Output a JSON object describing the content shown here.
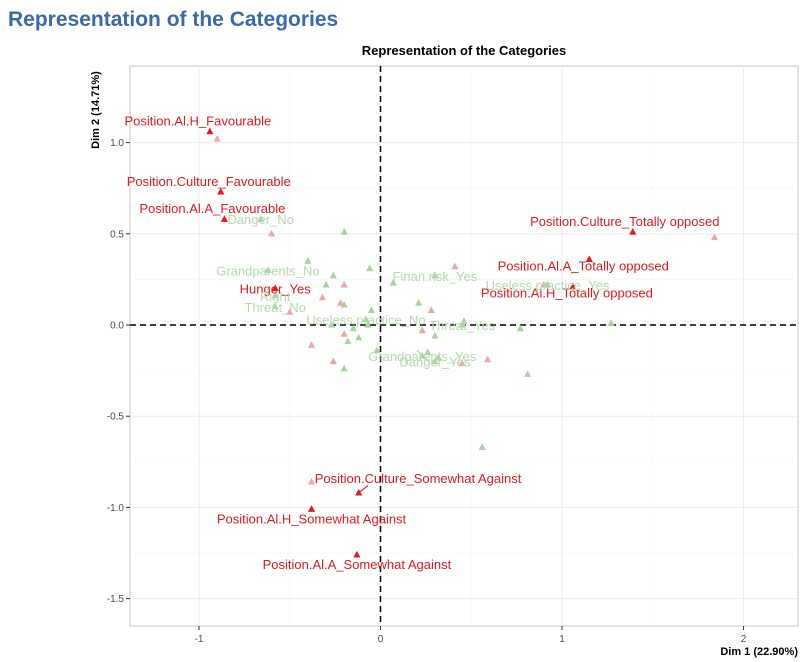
{
  "page": {
    "heading": "Representation of the Categories"
  },
  "chart_data": {
    "type": "scatter",
    "title": "Representation of the Categories",
    "xlabel": "Dim 1 (22.90%)",
    "ylabel": "Dim 2 (14.71%)",
    "xlim": [
      -1.38,
      2.3
    ],
    "ylim": [
      -1.65,
      1.42
    ],
    "x_ticks": [
      -1,
      0,
      1,
      2
    ],
    "y_ticks": [
      -1.5,
      -1.0,
      -0.5,
      0.0,
      0.5,
      1.0
    ],
    "grid": true,
    "reference_lines": {
      "x": 0,
      "y": 0,
      "style": "dashed"
    },
    "colors": {
      "highlight": "#e41a1c",
      "pink": "#f4a6a6",
      "green": "#a8d4a0",
      "green_label": "#b7d9b0",
      "axis_text": "#4d4d4d",
      "grid": "#ebebeb"
    },
    "labeled_points": [
      {
        "label": "Position.Al.H_Favourable",
        "x": -0.94,
        "y": 1.06,
        "group": "highlight"
      },
      {
        "label": "Position.Culture_Favourable",
        "x": -0.88,
        "y": 0.73,
        "group": "highlight"
      },
      {
        "label": "Position.Al.A_Favourable",
        "x": -0.86,
        "y": 0.58,
        "group": "highlight"
      },
      {
        "label": "Position.Culture_Totally opposed",
        "x": 1.39,
        "y": 0.51,
        "group": "highlight"
      },
      {
        "label": "Position.Al.A_Totally opposed",
        "x": 1.15,
        "y": 0.36,
        "group": "highlight"
      },
      {
        "label": "Position.Al.H_Totally opposed",
        "x": 1.06,
        "y": 0.21,
        "group": "highlight"
      },
      {
        "label": "Hunger_Yes",
        "x": -0.58,
        "y": 0.2,
        "group": "highlight"
      },
      {
        "label": "Position.Culture_Somewhat Against",
        "x": -0.12,
        "y": -0.92,
        "group": "highlight"
      },
      {
        "label": "Position.Al.H_Somewhat Against",
        "x": -0.38,
        "y": -1.01,
        "group": "highlight"
      },
      {
        "label": "Position.Al.A_Somewhat Against",
        "x": -0.13,
        "y": -1.26,
        "group": "highlight"
      },
      {
        "label": "Danger_No",
        "x": -0.66,
        "y": 0.58,
        "group": "green"
      },
      {
        "label": "Grandparents_No",
        "x": -0.62,
        "y": 0.3,
        "group": "green"
      },
      {
        "label": "Right",
        "x": -0.58,
        "y": 0.16,
        "group": "green"
      },
      {
        "label": "Threat_No",
        "x": -0.58,
        "y": 0.1,
        "group": "green"
      },
      {
        "label": "Finan.risk_Yes",
        "x": 0.3,
        "y": 0.27,
        "group": "green"
      },
      {
        "label": "Useless.practice_Yes",
        "x": 0.92,
        "y": 0.22,
        "group": "green"
      },
      {
        "label": "Useless.practice_No",
        "x": -0.08,
        "y": 0.03,
        "group": "green"
      },
      {
        "label": "Threat_Yes",
        "x": 0.45,
        "y": 0.0,
        "group": "green"
      },
      {
        "label": "Grandparents_Yes",
        "x": 0.23,
        "y": -0.17,
        "group": "green"
      },
      {
        "label": "Danger_Yes",
        "x": 0.3,
        "y": -0.2,
        "group": "green"
      }
    ],
    "unlabeled_points": [
      {
        "x": -0.9,
        "y": 1.02,
        "group": "pink"
      },
      {
        "x": -0.6,
        "y": 0.5,
        "group": "pink"
      },
      {
        "x": 1.84,
        "y": 0.48,
        "group": "pink"
      },
      {
        "x": 0.41,
        "y": 0.32,
        "group": "pink"
      },
      {
        "x": 0.9,
        "y": 0.22,
        "group": "pink"
      },
      {
        "x": -0.2,
        "y": 0.22,
        "group": "pink"
      },
      {
        "x": -0.32,
        "y": 0.15,
        "group": "pink"
      },
      {
        "x": -0.22,
        "y": 0.12,
        "group": "pink"
      },
      {
        "x": -0.5,
        "y": 0.07,
        "group": "pink"
      },
      {
        "x": 0.28,
        "y": 0.08,
        "group": "pink"
      },
      {
        "x": 0.23,
        "y": -0.03,
        "group": "pink"
      },
      {
        "x": -0.38,
        "y": -0.11,
        "group": "pink"
      },
      {
        "x": -0.2,
        "y": -0.05,
        "group": "pink"
      },
      {
        "x": -0.26,
        "y": -0.2,
        "group": "pink"
      },
      {
        "x": 0.45,
        "y": -0.21,
        "group": "pink"
      },
      {
        "x": 0.59,
        "y": -0.19,
        "group": "pink"
      },
      {
        "x": -0.38,
        "y": -0.86,
        "group": "pink"
      },
      {
        "x": -0.2,
        "y": 0.51,
        "group": "green"
      },
      {
        "x": -0.4,
        "y": 0.35,
        "group": "green"
      },
      {
        "x": -0.26,
        "y": 0.27,
        "group": "green"
      },
      {
        "x": -0.06,
        "y": 0.31,
        "group": "green"
      },
      {
        "x": -0.3,
        "y": 0.22,
        "group": "green"
      },
      {
        "x": -0.2,
        "y": 0.11,
        "group": "green"
      },
      {
        "x": -0.05,
        "y": 0.08,
        "group": "green"
      },
      {
        "x": 0.07,
        "y": 0.23,
        "group": "green"
      },
      {
        "x": 0.21,
        "y": 0.12,
        "group": "green"
      },
      {
        "x": -0.27,
        "y": 0.0,
        "group": "green"
      },
      {
        "x": -0.15,
        "y": -0.02,
        "group": "green"
      },
      {
        "x": -0.07,
        "y": 0.0,
        "group": "green"
      },
      {
        "x": 0.46,
        "y": 0.02,
        "group": "green"
      },
      {
        "x": 0.77,
        "y": -0.02,
        "group": "green"
      },
      {
        "x": 1.27,
        "y": 0.01,
        "group": "green"
      },
      {
        "x": -0.18,
        "y": -0.09,
        "group": "green"
      },
      {
        "x": -0.12,
        "y": -0.07,
        "group": "green"
      },
      {
        "x": -0.02,
        "y": -0.14,
        "group": "green"
      },
      {
        "x": 0.3,
        "y": -0.06,
        "group": "green"
      },
      {
        "x": 0.26,
        "y": -0.15,
        "group": "green"
      },
      {
        "x": 0.32,
        "y": -0.18,
        "group": "green"
      },
      {
        "x": -0.2,
        "y": -0.24,
        "group": "green"
      },
      {
        "x": 0.81,
        "y": -0.27,
        "group": "green"
      },
      {
        "x": 0.56,
        "y": -0.67,
        "group": "green"
      }
    ],
    "leader_lines": [
      {
        "from": [
          -0.07,
          -0.88
        ],
        "to": [
          -0.12,
          -0.92
        ]
      },
      {
        "from": [
          0.2,
          -0.14
        ],
        "to": [
          0.26,
          -0.19
        ]
      }
    ]
  }
}
